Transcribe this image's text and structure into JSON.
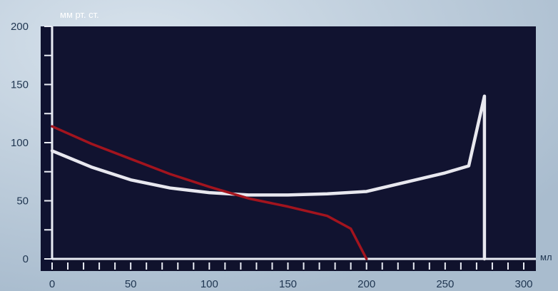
{
  "chart_data": {
    "type": "line",
    "ylabel": "мм рт. ст.",
    "xlabel": "мл",
    "xlim": [
      0,
      300
    ],
    "ylim": [
      0,
      200
    ],
    "x_ticks": [
      "0",
      "50",
      "100",
      "150",
      "200",
      "250",
      "300"
    ],
    "y_ticks": [
      "0",
      "50",
      "100",
      "150",
      "200"
    ],
    "grid": false,
    "series": [
      {
        "color": "#e8e8ef",
        "points": [
          [
            0,
            93
          ],
          [
            25,
            79
          ],
          [
            50,
            68
          ],
          [
            75,
            61
          ],
          [
            100,
            57
          ],
          [
            125,
            55
          ],
          [
            150,
            55
          ],
          [
            175,
            56
          ],
          [
            200,
            58
          ],
          [
            225,
            66
          ],
          [
            250,
            74
          ],
          [
            265,
            80
          ],
          [
            275,
            140
          ],
          [
            275,
            0
          ]
        ]
      },
      {
        "color": "#a3141e",
        "points": [
          [
            0,
            114
          ],
          [
            25,
            99
          ],
          [
            50,
            86
          ],
          [
            75,
            73
          ],
          [
            100,
            62
          ],
          [
            125,
            52
          ],
          [
            150,
            45
          ],
          [
            175,
            37
          ],
          [
            190,
            26
          ],
          [
            200,
            0
          ]
        ]
      }
    ]
  }
}
